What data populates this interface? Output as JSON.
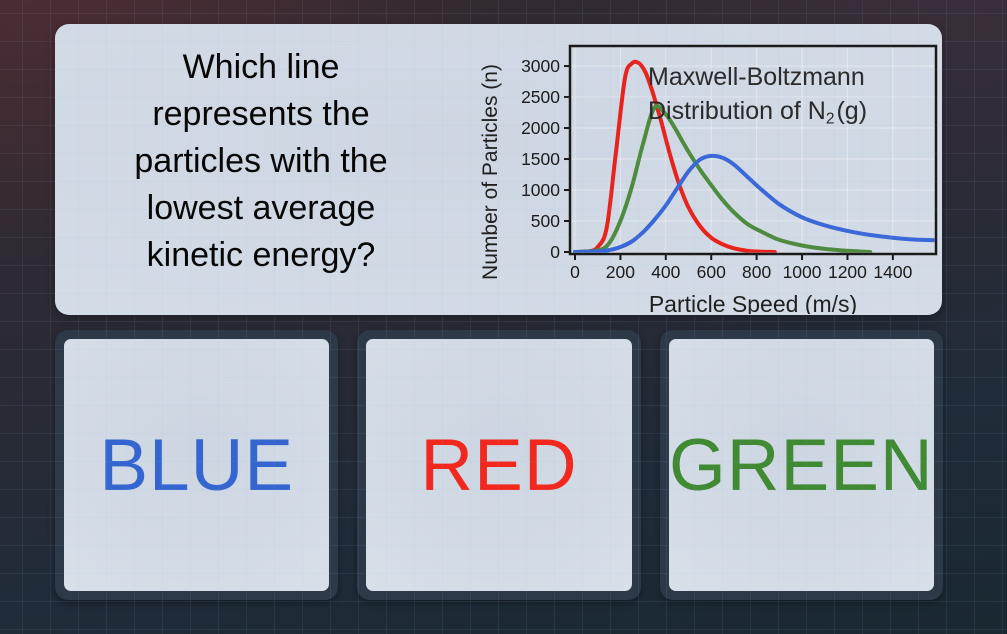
{
  "question": {
    "lines": [
      "Which line",
      "represents the",
      "particles with the",
      "lowest average",
      "kinetic energy?"
    ],
    "text": "Which line represents the particles with the lowest average kinetic energy?"
  },
  "chart_data": {
    "type": "line",
    "title_line1": "Maxwell-Boltzmann",
    "title_line2": {
      "pre": "Distribution of N",
      "sub": "2",
      "post": "(g)"
    },
    "xlabel": "Particle Speed (m/s)",
    "ylabel": "Number of Particles (n)",
    "xlim": [
      0,
      1590
    ],
    "ylim": [
      0,
      3320
    ],
    "x_ticks": [
      0,
      200,
      400,
      600,
      800,
      1000,
      1200,
      1400
    ],
    "y_ticks": [
      0,
      500,
      1000,
      1500,
      2000,
      2500,
      3000
    ],
    "grid": true,
    "legend": "none",
    "axis_color": "#1a1a1a",
    "series": [
      {
        "name": "red",
        "color": "#e8231d",
        "peak": {
          "speed": 250,
          "particles": 3050
        },
        "x": [
          0,
          60,
          100,
          140,
          180,
          220,
          250,
          280,
          310,
          340,
          380,
          420,
          460,
          500,
          550,
          600,
          650,
          700,
          760,
          820,
          880
        ],
        "y": [
          0,
          10,
          80,
          400,
          1600,
          2800,
          3040,
          3050,
          2900,
          2600,
          2100,
          1550,
          1080,
          720,
          420,
          230,
          125,
          60,
          20,
          5,
          0
        ]
      },
      {
        "name": "green",
        "color": "#4e8b3f",
        "peak": {
          "speed": 350,
          "particles": 2330
        },
        "x": [
          0,
          100,
          150,
          200,
          250,
          300,
          350,
          400,
          440,
          480,
          520,
          560,
          600,
          650,
          700,
          760,
          820,
          900,
          1000,
          1100,
          1200,
          1300
        ],
        "y": [
          0,
          25,
          140,
          500,
          1050,
          1750,
          2330,
          2220,
          2000,
          1740,
          1500,
          1280,
          1080,
          840,
          640,
          450,
          330,
          195,
          105,
          50,
          20,
          0
        ]
      },
      {
        "name": "blue",
        "color": "#3a68d8",
        "peak": {
          "speed": 580,
          "particles": 1550
        },
        "x": [
          0,
          100,
          150,
          200,
          250,
          300,
          350,
          400,
          450,
          500,
          550,
          600,
          650,
          700,
          760,
          820,
          900,
          1000,
          1100,
          1200,
          1300,
          1400,
          1500,
          1585
        ],
        "y": [
          0,
          10,
          30,
          80,
          170,
          320,
          520,
          750,
          1030,
          1300,
          1490,
          1550,
          1520,
          1410,
          1210,
          1010,
          770,
          560,
          430,
          340,
          275,
          230,
          200,
          190
        ]
      }
    ]
  },
  "answers": [
    {
      "label": "BLUE",
      "color": "#3565cf"
    },
    {
      "label": "RED",
      "color": "#f2271d"
    },
    {
      "label": "GREEN",
      "color": "#3f8a33"
    }
  ],
  "theme": {
    "background_top": "#362a31",
    "background_bottom": "#1a2832",
    "card_bg": "#d2dbe6",
    "button_frame": "#2d3947",
    "question_text_color": "#060606",
    "chart_text_color": "#2a2a2a"
  }
}
